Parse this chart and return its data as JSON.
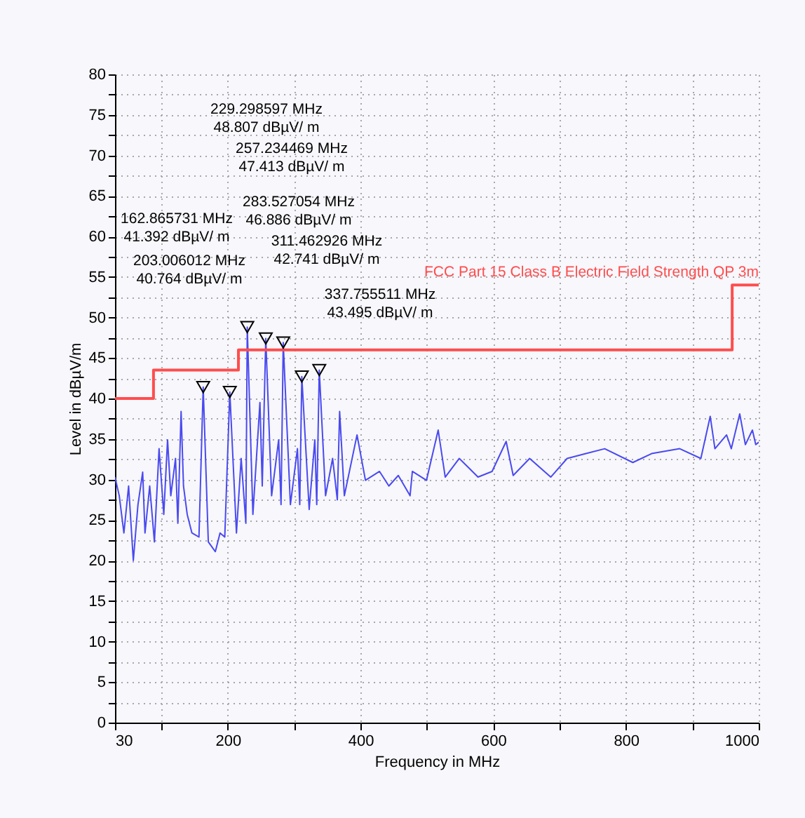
{
  "chart_data": {
    "type": "line",
    "xlabel": "Frequency in MHz",
    "ylabel": "Level in dBµV/m",
    "xlim": [
      30,
      1000
    ],
    "ylim": [
      0,
      80
    ],
    "xticks": [
      30,
      {
        "value": 100,
        "label": null
      },
      200,
      {
        "value": 300,
        "label": null
      },
      400,
      {
        "value": 500,
        "label": null
      },
      600,
      {
        "value": 700,
        "label": null
      },
      800,
      {
        "value": 900,
        "label": null
      },
      1000
    ],
    "yticks": [
      0,
      {
        "value": 2.5,
        "label": null
      },
      5,
      {
        "value": 7.5,
        "label": null
      },
      10,
      {
        "value": 12.5,
        "label": null
      },
      15,
      {
        "value": 17.5,
        "label": null
      },
      20,
      {
        "value": 22.5,
        "label": null
      },
      25,
      {
        "value": 27.5,
        "label": null
      },
      30,
      {
        "value": 32.5,
        "label": null
      },
      35,
      {
        "value": 37.5,
        "label": null
      },
      40,
      {
        "value": 42.5,
        "label": null
      },
      45,
      {
        "value": 47.5,
        "label": null
      },
      50,
      {
        "value": 52.5,
        "label": null
      },
      55,
      {
        "value": 57.5,
        "label": null
      },
      60,
      {
        "value": 62.5,
        "label": null
      },
      65,
      {
        "value": 67.5,
        "label": null
      },
      70,
      {
        "value": 72.5,
        "label": null
      },
      75,
      {
        "value": 77.5,
        "label": null
      },
      80
    ],
    "grid": true,
    "marker": "none",
    "line_style": "solid",
    "series": [
      {
        "color": "#4a4af0",
        "x": [
          30,
          36.4,
          43.4,
          50.5,
          57.6,
          64.6,
          71.7,
          75.2,
          82.3,
          89.4,
          96.4,
          103.5,
          109.2,
          114.1,
          121.2,
          124.7,
          129.6,
          133.2,
          138.8,
          145.9,
          156.5,
          162.9,
          170.6,
          181.2,
          188.3,
          195.4,
          203.0,
          213,
          220.1,
          227.2,
          229.3,
          237.8,
          248.4,
          251.9,
          257.2,
          266,
          276.6,
          280.2,
          283.5,
          294.3,
          304.9,
          308.4,
          311.5,
          322.6,
          331.1,
          334,
          337.8,
          347.3,
          357.9,
          365,
          368.5,
          375.6,
          394.7,
          407.4,
          428.6,
          442.7,
          456.9,
          474.6,
          478.1,
          499.3,
          517,
          527.6,
          548.8,
          577,
          598.2,
          619.4,
          630,
          654.8,
          686.6,
          711.3,
          739.6,
          767.9,
          810.3,
          838.6,
          881,
          912.8,
          926.9,
          934,
          951.6,
          958.7,
          971.4,
          979.9,
          990.5,
          995.5,
          1000
        ],
        "values": [
          30.3,
          28,
          23.4,
          29.2,
          20,
          26.9,
          30.9,
          23.4,
          29.2,
          22.3,
          33.8,
          25.7,
          34.9,
          28,
          32.6,
          24.6,
          38.4,
          29.2,
          25.7,
          23.4,
          22.9,
          41.4,
          22.3,
          21.1,
          23.4,
          22.9,
          40.8,
          23.4,
          32.6,
          24.6,
          48.8,
          25.7,
          39.5,
          29.2,
          47.4,
          28,
          34.9,
          26.9,
          46.9,
          26.9,
          33.8,
          26.9,
          42.7,
          26.3,
          34.9,
          26.9,
          43.5,
          28,
          32.6,
          27.5,
          38.4,
          28,
          35.5,
          29.9,
          31,
          29.2,
          30.5,
          28,
          31,
          29.9,
          36.1,
          30.3,
          32.6,
          30.3,
          31,
          34.7,
          30.5,
          32.6,
          30.3,
          32.6,
          33.2,
          33.8,
          32.1,
          33.2,
          33.8,
          32.6,
          37.8,
          33.8,
          35.5,
          33.8,
          38.1,
          34.3,
          36.1,
          34.3,
          34.6
        ]
      },
      {
        "type": "step",
        "name": "FCC Part 15 Class B Electric Field Strength QP 3m",
        "color": "#ff4d4d",
        "x": [
          30,
          88,
          216,
          960,
          1000
        ],
        "values": [
          40,
          43.5,
          46,
          54,
          54
        ]
      },
      {
        "type": "scatter",
        "marker": "triangle",
        "color": "#000000",
        "x": [
          162.9,
          203.0,
          229.3,
          257.2,
          283.5,
          311.5,
          337.8
        ],
        "values": [
          41.4,
          40.8,
          48.8,
          47.4,
          46.9,
          42.7,
          43.5
        ]
      }
    ],
    "annotations": [
      "229.298597 MHz\n48.807 dBµV/ m",
      "257.234469 MHz\n47.413 dBµV/ m",
      "283.527054 MHz\n46.886 dBµV/ m",
      "162.865731 MHz\n41.392 dBµV/ m",
      "311.462926 MHz\n42.741 dBµV/ m",
      "203.006012 MHz\n40.764 dBµV/ m",
      "337.755511 MHz\n43.495 dBµV/ m"
    ]
  }
}
